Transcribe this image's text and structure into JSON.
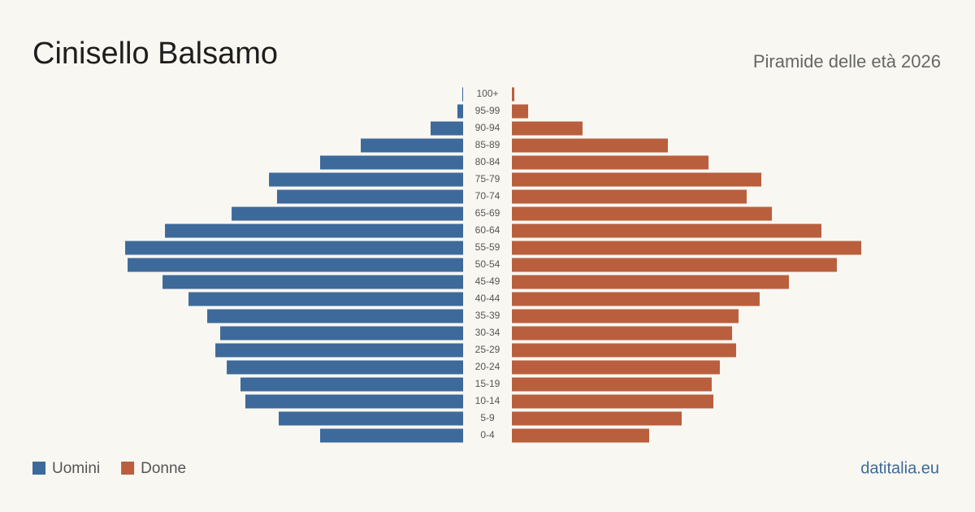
{
  "chart_data": {
    "type": "pyramid",
    "title": "Cinisello Balsamo",
    "subtitle": "Piramide delle età 2026",
    "source": "datitalia.eu",
    "categories": [
      "100+",
      "95-99",
      "90-94",
      "85-89",
      "80-84",
      "75-79",
      "70-74",
      "65-69",
      "60-64",
      "55-59",
      "50-54",
      "45-49",
      "40-44",
      "35-39",
      "30-34",
      "25-29",
      "20-24",
      "15-19",
      "10-14",
      "5-9",
      "0-4"
    ],
    "series": [
      {
        "name": "Uomini",
        "color": "#3d6a9a",
        "values": [
          8,
          54,
          308,
          969,
          1354,
          1838,
          1762,
          2192,
          2823,
          3200,
          3177,
          2846,
          2600,
          2423,
          2300,
          2346,
          2238,
          2108,
          2062,
          1746,
          1354
        ]
      },
      {
        "name": "Donne",
        "color": "#b95f3e",
        "values": [
          23,
          154,
          669,
          1477,
          1862,
          2362,
          2223,
          2462,
          2931,
          3308,
          3077,
          2623,
          2346,
          2146,
          2085,
          2123,
          1969,
          1892,
          1908,
          1608,
          1300
        ]
      }
    ]
  }
}
